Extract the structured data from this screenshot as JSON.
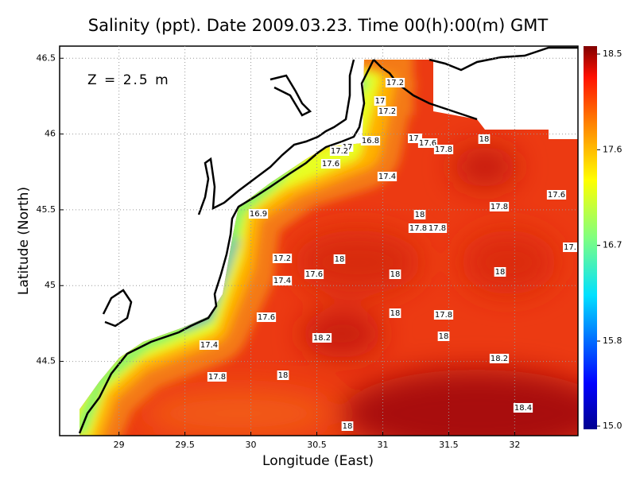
{
  "chart_data": {
    "type": "map",
    "title": "Salinity (ppt). Date 2009.03.23. Time 00(h):00(m) GMT",
    "annotation": "Z = 2.5 m",
    "x_label": "Longitude (East)",
    "y_label": "Latitude (North)",
    "xlim": [
      28.55,
      32.48
    ],
    "ylim": [
      44.01,
      46.58
    ],
    "xticks": [
      29,
      29.5,
      30,
      30.5,
      31,
      31.5,
      32
    ],
    "yticks": [
      44.5,
      45,
      45.5,
      46,
      46.5
    ],
    "grid": true,
    "colorbar": {
      "clim": [
        15.0,
        18.5
      ],
      "ticks": [
        18.5,
        17.6,
        16.7,
        15.8,
        {
          "value": 15.0,
          "label": "15.0"
        }
      ]
    },
    "contour_labels": [
      "17.2",
      "17",
      "17.2",
      "16.8",
      "17",
      "17.2",
      "17.6",
      "17.4",
      "17.",
      "17.6",
      "17.8",
      "18",
      "17.6",
      "17.8",
      "18",
      "17.8",
      "17.8",
      "16.9",
      "17.2",
      "18",
      "17.4",
      "17.6",
      "18",
      "18",
      "17.",
      "17.6",
      "18",
      "17.8",
      "18.2",
      "18",
      "17.4",
      "18.2",
      "17.8",
      "18",
      "18.4",
      "18"
    ]
  }
}
